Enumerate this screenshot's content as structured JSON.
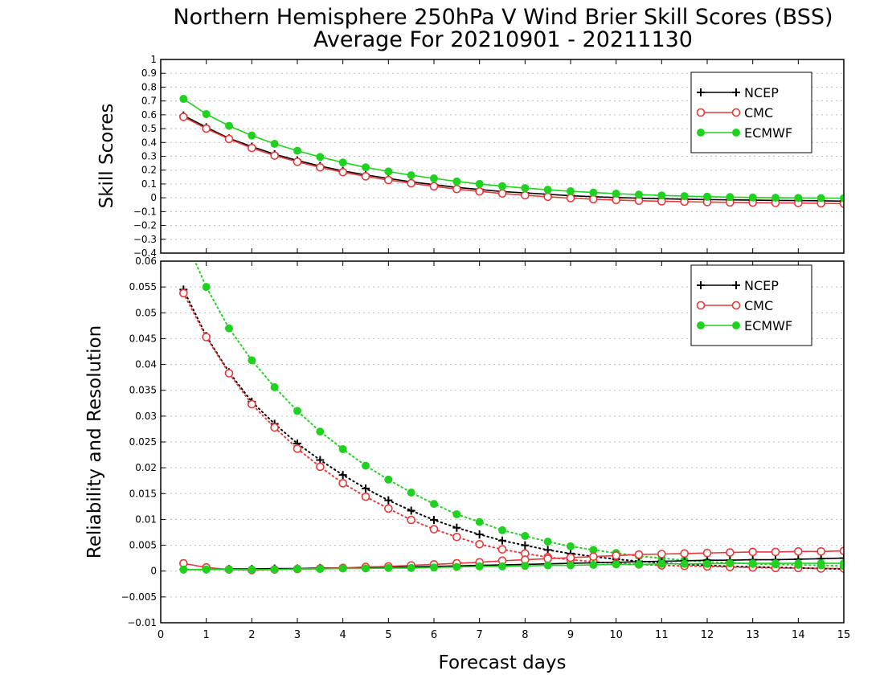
{
  "figure": {
    "title_line1": "Northern Hemisphere 250hPa V Wind Brier Skill Scores (BSS)",
    "title_line2": "Average For 20210901 - 20211130",
    "xlabel": "Forecast days"
  },
  "colors": {
    "NCEP": "#000000",
    "CMC": "#e8393a",
    "ECMWF": "#1fd21f"
  },
  "chart_data": [
    {
      "type": "line",
      "ylabel": "Skill Scores",
      "xlim": [
        0,
        15
      ],
      "ylim": [
        -0.4,
        1
      ],
      "x_ticks": [
        "0",
        "1",
        "2",
        "3",
        "4",
        "5",
        "6",
        "7",
        "8",
        "9",
        "10",
        "11",
        "12",
        "13",
        "14",
        "15"
      ],
      "y_ticks": [
        "−0.4",
        "−0.3",
        "−0.2",
        "−0.1",
        "0",
        "0.1",
        "0.2",
        "0.3",
        "0.4",
        "0.5",
        "0.6",
        "0.7",
        "0.8",
        "0.9",
        "1"
      ],
      "grid": true,
      "legend_position": "top-right",
      "legend": [
        "NCEP",
        "CMC",
        "ECMWF"
      ],
      "x": [
        0.5,
        1,
        1.5,
        2,
        2.5,
        3,
        3.5,
        4,
        4.5,
        5,
        5.5,
        6,
        6.5,
        7,
        7.5,
        8,
        8.5,
        9,
        9.5,
        10,
        10.5,
        11,
        11.5,
        12,
        12.5,
        13,
        13.5,
        14,
        14.5,
        15
      ],
      "series": [
        {
          "name": "NCEP",
          "marker": "plus",
          "style": "solid",
          "values": [
            0.595,
            0.51,
            0.43,
            0.37,
            0.315,
            0.27,
            0.23,
            0.195,
            0.165,
            0.14,
            0.115,
            0.095,
            0.075,
            0.06,
            0.045,
            0.035,
            0.025,
            0.015,
            0.008,
            0.002,
            -0.003,
            -0.007,
            -0.01,
            -0.013,
            -0.015,
            -0.017,
            -0.019,
            -0.02,
            -0.022,
            -0.024
          ]
        },
        {
          "name": "CMC",
          "marker": "open-circle",
          "style": "solid",
          "values": [
            0.585,
            0.5,
            0.425,
            0.36,
            0.305,
            0.26,
            0.22,
            0.185,
            0.155,
            0.128,
            0.105,
            0.083,
            0.063,
            0.046,
            0.031,
            0.018,
            0.007,
            -0.002,
            -0.01,
            -0.016,
            -0.021,
            -0.025,
            -0.028,
            -0.031,
            -0.033,
            -0.035,
            -0.037,
            -0.038,
            -0.04,
            -0.042
          ]
        },
        {
          "name": "ECMWF",
          "marker": "filled-circle",
          "style": "solid",
          "values": [
            0.715,
            0.605,
            0.52,
            0.45,
            0.39,
            0.34,
            0.295,
            0.255,
            0.22,
            0.19,
            0.163,
            0.14,
            0.118,
            0.1,
            0.084,
            0.07,
            0.058,
            0.047,
            0.038,
            0.03,
            0.023,
            0.017,
            0.012,
            0.008,
            0.005,
            0.002,
            0.0,
            -0.001,
            -0.002,
            -0.003
          ]
        }
      ]
    },
    {
      "type": "line",
      "ylabel": "Reliability and Resolution",
      "xlim": [
        0,
        15
      ],
      "ylim": [
        -0.01,
        0.06
      ],
      "x_ticks": [
        "0",
        "1",
        "2",
        "3",
        "4",
        "5",
        "6",
        "7",
        "8",
        "9",
        "10",
        "11",
        "12",
        "13",
        "14",
        "15"
      ],
      "y_ticks": [
        "−0.01",
        "−0.005",
        "0",
        "0.005",
        "0.01",
        "0.015",
        "0.02",
        "0.025",
        "0.03",
        "0.035",
        "0.04",
        "0.045",
        "0.05",
        "0.055",
        "0.06"
      ],
      "grid": true,
      "legend_position": "top-right",
      "legend": [
        "NCEP",
        "CMC",
        "ECMWF"
      ],
      "x": [
        0.5,
        1,
        1.5,
        2,
        2.5,
        3,
        3.5,
        4,
        4.5,
        5,
        5.5,
        6,
        6.5,
        7,
        7.5,
        8,
        8.5,
        9,
        9.5,
        10,
        10.5,
        11,
        11.5,
        12,
        12.5,
        13,
        13.5,
        14,
        14.5,
        15
      ],
      "series": [
        {
          "name": "NCEP",
          "marker": "plus",
          "style": "dotted",
          "values": [
            0.0545,
            0.0455,
            0.0385,
            0.0328,
            0.0285,
            0.0247,
            0.0215,
            0.0186,
            0.016,
            0.0137,
            0.0117,
            0.0099,
            0.0084,
            0.0071,
            0.0059,
            0.005,
            0.0041,
            0.0034,
            0.0028,
            0.0023,
            0.0019,
            0.0016,
            0.0013,
            0.0011,
            0.0009,
            0.0008,
            0.0007,
            0.0006,
            0.0005,
            0.0004
          ]
        },
        {
          "name": "CMC",
          "marker": "open-circle",
          "style": "dotted",
          "values": [
            0.0538,
            0.0453,
            0.0383,
            0.0323,
            0.0278,
            0.0237,
            0.0202,
            0.017,
            0.0144,
            0.0121,
            0.0099,
            0.0081,
            0.0066,
            0.0052,
            0.0042,
            0.0034,
            0.0027,
            0.0022,
            0.0018,
            0.0015,
            0.0013,
            0.0011,
            0.001,
            0.0009,
            0.0008,
            0.0007,
            0.0006,
            0.0006,
            0.0005,
            0.0005
          ]
        },
        {
          "name": "ECMWF",
          "marker": "filled-circle",
          "style": "dotted",
          "values": [
            0.065,
            0.055,
            0.047,
            0.0408,
            0.0356,
            0.031,
            0.027,
            0.0236,
            0.0204,
            0.0177,
            0.0152,
            0.013,
            0.011,
            0.0095,
            0.0079,
            0.0068,
            0.0057,
            0.0048,
            0.0041,
            0.0035,
            0.0029,
            0.0025,
            0.0021,
            0.0018,
            0.0016,
            0.0014,
            0.0013,
            0.0012,
            0.0011,
            0.001
          ]
        },
        {
          "name": "NCEP",
          "marker": "plus",
          "style": "solid",
          "values": [
            0.0003,
            0.0003,
            0.0004,
            0.0004,
            0.0005,
            0.0005,
            0.0006,
            0.0006,
            0.0007,
            0.0007,
            0.0008,
            0.0009,
            0.001,
            0.0011,
            0.0012,
            0.0013,
            0.0014,
            0.0015,
            0.0016,
            0.0017,
            0.0018,
            0.0019,
            0.002,
            0.0021,
            0.0021,
            0.0022,
            0.0022,
            0.0023,
            0.0024,
            0.0025
          ]
        },
        {
          "name": "CMC",
          "marker": "open-circle",
          "style": "solid",
          "values": [
            0.0015,
            0.0007,
            0.0003,
            0.0002,
            0.0003,
            0.0004,
            0.0005,
            0.0006,
            0.0008,
            0.0009,
            0.0011,
            0.0013,
            0.0015,
            0.0017,
            0.002,
            0.0022,
            0.0024,
            0.0026,
            0.0028,
            0.003,
            0.0032,
            0.0033,
            0.0034,
            0.0035,
            0.0036,
            0.0037,
            0.0037,
            0.0038,
            0.0038,
            0.0039
          ]
        },
        {
          "name": "ECMWF",
          "marker": "filled-circle",
          "style": "solid",
          "values": [
            0.0003,
            0.0003,
            0.0003,
            0.0003,
            0.0003,
            0.0004,
            0.0004,
            0.0005,
            0.0005,
            0.0006,
            0.0006,
            0.0007,
            0.0008,
            0.0009,
            0.0009,
            0.001,
            0.0011,
            0.0011,
            0.0012,
            0.0013,
            0.0013,
            0.0014,
            0.0014,
            0.0014,
            0.0015,
            0.0015,
            0.0015,
            0.0015,
            0.0015,
            0.0015
          ]
        }
      ]
    }
  ]
}
